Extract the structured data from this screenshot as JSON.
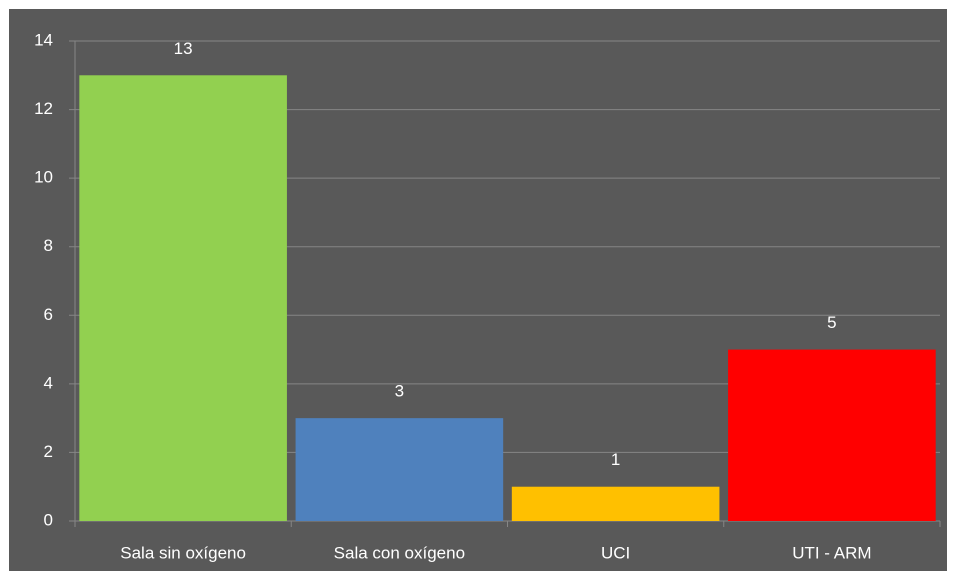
{
  "chart_data": {
    "type": "bar",
    "categories": [
      "Sala sin oxígeno",
      "Sala con oxígeno",
      "UCI",
      "UTI - ARM"
    ],
    "values": [
      13,
      3,
      1,
      5
    ],
    "colors": [
      "#92d050",
      "#4f81bd",
      "#ffc000",
      "#ff0000"
    ],
    "ylim": [
      0,
      14
    ],
    "yticks": [
      0,
      2,
      4,
      6,
      8,
      10,
      12,
      14
    ],
    "grid": true
  }
}
